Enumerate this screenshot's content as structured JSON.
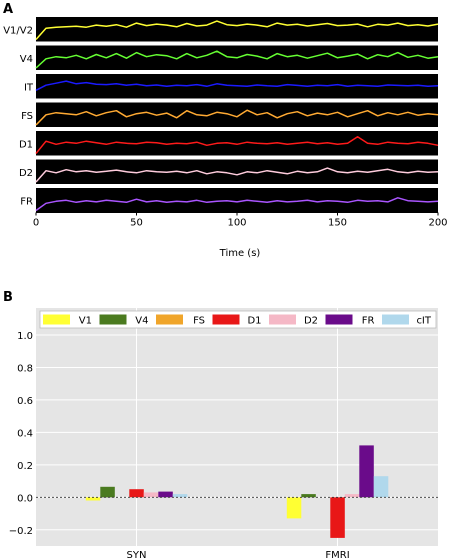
{
  "chart_data": [
    {
      "type": "line",
      "panel_label": "A",
      "xlabel": "Time (s)",
      "xlim": [
        0,
        200
      ],
      "xticks": [
        "0",
        "50",
        "100",
        "150",
        "200"
      ],
      "background": "#000000",
      "series": [
        {
          "name": "V1/V2",
          "color": "#ffff33",
          "values": [
            0.0,
            0.55,
            0.6,
            0.62,
            0.65,
            0.6,
            0.7,
            0.65,
            0.72,
            0.6,
            0.8,
            0.68,
            0.75,
            0.7,
            0.62,
            0.78,
            0.66,
            0.7,
            0.9,
            0.72,
            0.68,
            0.75,
            0.7,
            0.62,
            0.8,
            0.7,
            0.74,
            0.66,
            0.72,
            0.78,
            0.68,
            0.7,
            0.75,
            0.62,
            0.74,
            0.7,
            0.8,
            0.68,
            0.72,
            0.66,
            0.75
          ]
        },
        {
          "name": "V4",
          "color": "#66ff33",
          "values": [
            0.0,
            0.45,
            0.55,
            0.5,
            0.62,
            0.45,
            0.66,
            0.5,
            0.7,
            0.48,
            0.75,
            0.55,
            0.65,
            0.6,
            0.45,
            0.7,
            0.5,
            0.62,
            0.82,
            0.55,
            0.5,
            0.66,
            0.58,
            0.45,
            0.7,
            0.55,
            0.62,
            0.48,
            0.6,
            0.72,
            0.5,
            0.58,
            0.68,
            0.45,
            0.65,
            0.55,
            0.75,
            0.52,
            0.62,
            0.48,
            0.55
          ]
        },
        {
          "name": "IT",
          "color": "#1a1aff",
          "values": [
            0.3,
            0.55,
            0.65,
            0.75,
            0.62,
            0.68,
            0.6,
            0.58,
            0.62,
            0.55,
            0.6,
            0.52,
            0.56,
            0.5,
            0.55,
            0.52,
            0.58,
            0.5,
            0.62,
            0.55,
            0.52,
            0.5,
            0.56,
            0.52,
            0.5,
            0.58,
            0.54,
            0.5,
            0.55,
            0.52,
            0.58,
            0.5,
            0.55,
            0.52,
            0.5,
            0.56,
            0.54,
            0.52,
            0.55,
            0.5,
            0.52
          ]
        },
        {
          "name": "FS",
          "color": "#ffaa33",
          "values": [
            0.0,
            0.5,
            0.6,
            0.55,
            0.5,
            0.65,
            0.45,
            0.6,
            0.7,
            0.4,
            0.55,
            0.62,
            0.48,
            0.58,
            0.35,
            0.7,
            0.5,
            0.45,
            0.62,
            0.55,
            0.4,
            0.72,
            0.5,
            0.6,
            0.35,
            0.55,
            0.65,
            0.45,
            0.58,
            0.5,
            0.62,
            0.4,
            0.55,
            0.7,
            0.45,
            0.6,
            0.5,
            0.62,
            0.48,
            0.55,
            0.5
          ]
        },
        {
          "name": "D1",
          "color": "#ff1a1a",
          "values": [
            0.0,
            0.6,
            0.45,
            0.55,
            0.5,
            0.6,
            0.52,
            0.45,
            0.55,
            0.5,
            0.48,
            0.55,
            0.52,
            0.45,
            0.5,
            0.48,
            0.55,
            0.4,
            0.5,
            0.52,
            0.45,
            0.55,
            0.5,
            0.48,
            0.52,
            0.45,
            0.5,
            0.55,
            0.48,
            0.52,
            0.45,
            0.5,
            0.82,
            0.5,
            0.45,
            0.55,
            0.5,
            0.48,
            0.55,
            0.5,
            0.4
          ]
        },
        {
          "name": "D2",
          "color": "#ffccdd",
          "values": [
            0.0,
            0.55,
            0.45,
            0.6,
            0.5,
            0.55,
            0.48,
            0.52,
            0.58,
            0.5,
            0.45,
            0.55,
            0.5,
            0.48,
            0.52,
            0.45,
            0.55,
            0.4,
            0.5,
            0.45,
            0.35,
            0.5,
            0.45,
            0.55,
            0.48,
            0.4,
            0.52,
            0.45,
            0.5,
            0.68,
            0.5,
            0.45,
            0.52,
            0.48,
            0.55,
            0.62,
            0.5,
            0.45,
            0.52,
            0.48,
            0.5
          ]
        },
        {
          "name": "FR",
          "color": "#aa55ff",
          "values": [
            0.0,
            0.35,
            0.45,
            0.5,
            0.4,
            0.48,
            0.42,
            0.5,
            0.45,
            0.4,
            0.55,
            0.42,
            0.48,
            0.4,
            0.45,
            0.42,
            0.5,
            0.4,
            0.45,
            0.48,
            0.42,
            0.5,
            0.45,
            0.4,
            0.48,
            0.42,
            0.45,
            0.5,
            0.42,
            0.48,
            0.45,
            0.4,
            0.5,
            0.45,
            0.48,
            0.42,
            0.62,
            0.48,
            0.45,
            0.42,
            0.45
          ]
        }
      ]
    },
    {
      "type": "bar",
      "panel_label": "B",
      "categories": [
        "SYN",
        "FMRI"
      ],
      "ylim": [
        -0.3,
        1.0
      ],
      "yticks": [
        "−0.2",
        "0.0",
        "0.2",
        "0.4",
        "0.6",
        "0.8",
        "1.0"
      ],
      "legend_location": "top",
      "grid": true,
      "series": [
        {
          "name": "V1",
          "color": "#ffff33",
          "values": [
            -0.02,
            -0.13
          ]
        },
        {
          "name": "V4",
          "color": "#4a7a1f",
          "values": [
            0.065,
            0.02
          ]
        },
        {
          "name": "FS",
          "color": "#f0a52a",
          "values": [
            0.0,
            0.0
          ]
        },
        {
          "name": "D1",
          "color": "#e81717",
          "values": [
            0.05,
            -0.25
          ]
        },
        {
          "name": "D2",
          "color": "#f5b8c6",
          "values": [
            0.03,
            0.02
          ]
        },
        {
          "name": "FR",
          "color": "#6a0b8a",
          "values": [
            0.035,
            0.32
          ]
        },
        {
          "name": "cIT",
          "color": "#b0d8ec",
          "values": [
            0.02,
            0.13
          ]
        }
      ]
    }
  ]
}
